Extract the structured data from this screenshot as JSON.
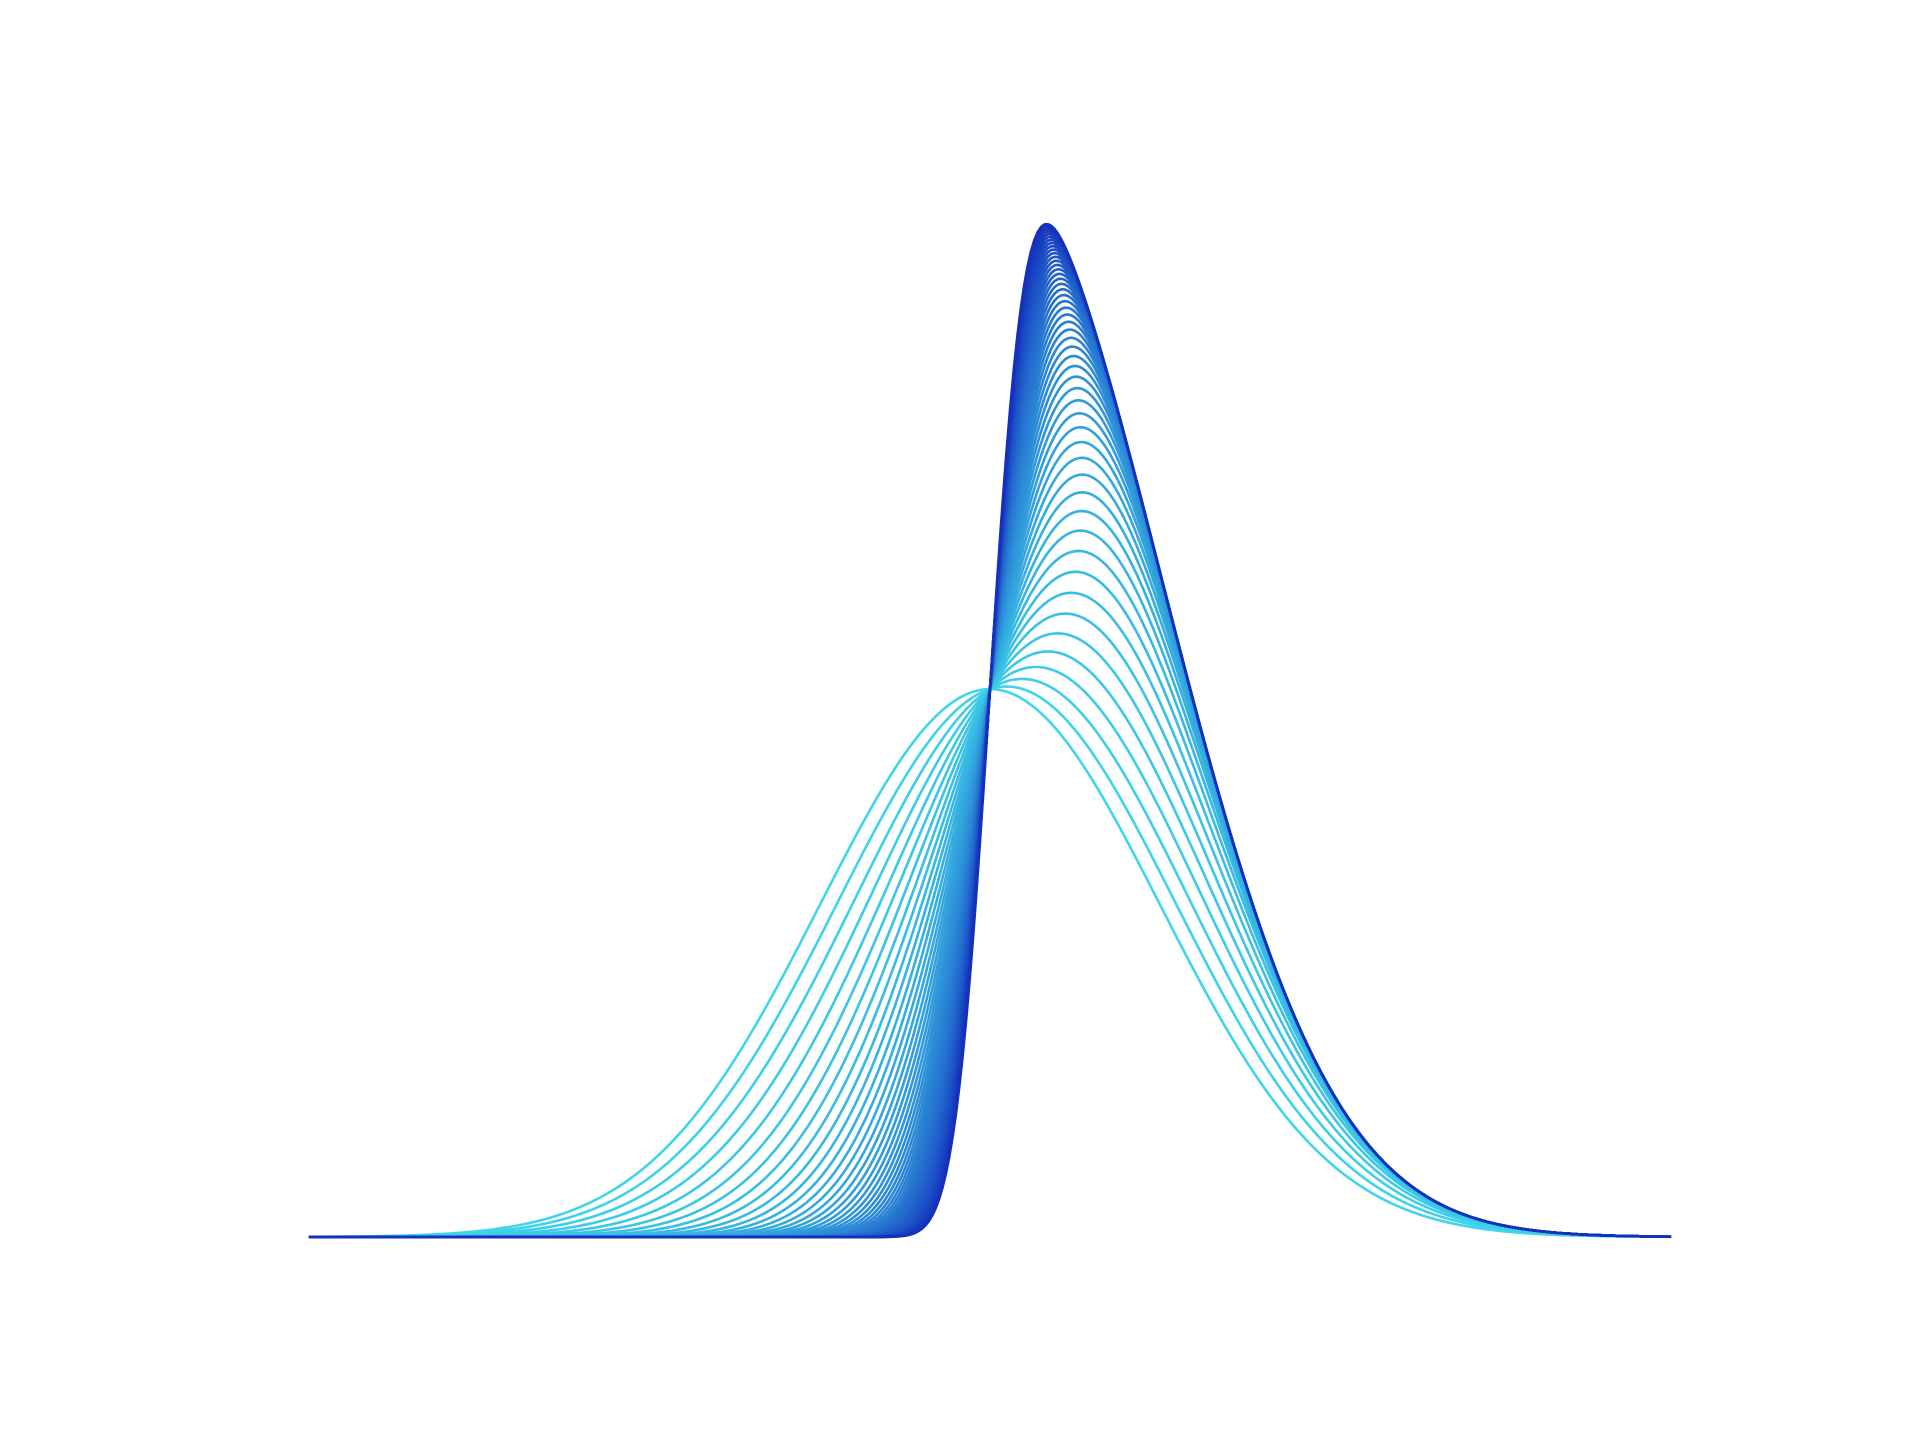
{
  "chart_data": {
    "type": "line",
    "axes_visible": false,
    "grid": false,
    "legend": "none",
    "x_range": [
      -4,
      4
    ],
    "y_range": [
      0,
      1
    ],
    "series_count": 50,
    "series_family": {
      "kind": "skew-normal density curves",
      "skew_start": 0,
      "skew_end": 6,
      "color_start": "#3fd6ec",
      "color_end": "#1430bc"
    },
    "series_peaks": {
      "first": {
        "x": -0.35,
        "y": 0.49
      },
      "last": {
        "x": 1.32,
        "y": 1.0
      }
    }
  }
}
